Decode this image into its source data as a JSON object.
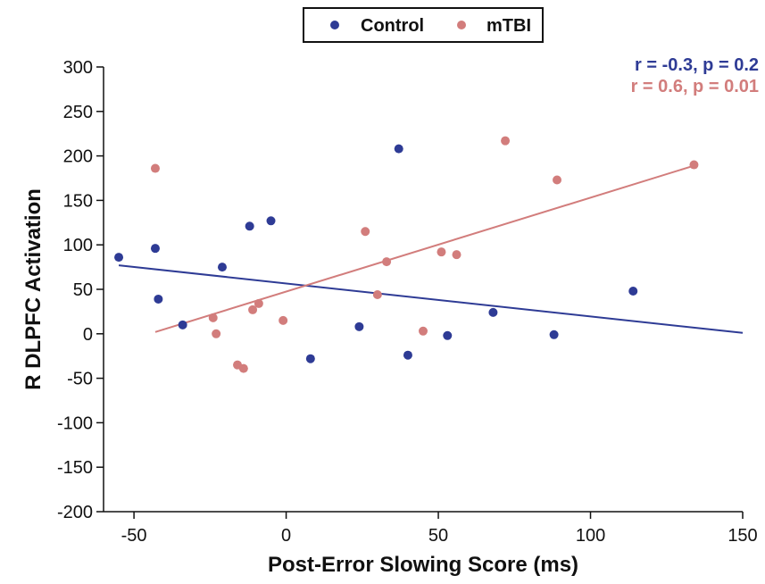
{
  "chart_data": {
    "type": "scatter",
    "title": "",
    "xlabel": "Post-Error Slowing Score (ms)",
    "ylabel": "R DLPFC Activation",
    "xlim": [
      -60,
      150
    ],
    "ylim": [
      -200,
      300
    ],
    "xticks": [
      -50,
      0,
      50,
      100,
      150
    ],
    "yticks": [
      300,
      250,
      200,
      150,
      100,
      50,
      0,
      -50,
      -100,
      -150,
      -200
    ],
    "grid": false,
    "legend_position": "top-center",
    "series": [
      {
        "name": "Control",
        "color": "#2e3b95",
        "points": [
          [
            -55,
            86
          ],
          [
            -43,
            96
          ],
          [
            -42,
            39
          ],
          [
            -34,
            10
          ],
          [
            -21,
            75
          ],
          [
            -12,
            121
          ],
          [
            -5,
            127
          ],
          [
            8,
            -28
          ],
          [
            24,
            8
          ],
          [
            37,
            208
          ],
          [
            40,
            -24
          ],
          [
            53,
            -2
          ],
          [
            68,
            24
          ],
          [
            88,
            -1
          ],
          [
            114,
            48
          ]
        ],
        "fit": {
          "x": [
            -55,
            150
          ],
          "y": [
            77,
            1
          ]
        },
        "stat": "r = -0.3, p = 0.2"
      },
      {
        "name": "mTBI",
        "color": "#d27d7c",
        "points": [
          [
            -43,
            186
          ],
          [
            -24,
            18
          ],
          [
            -23,
            0
          ],
          [
            -16,
            -35
          ],
          [
            -14,
            -39
          ],
          [
            -11,
            27
          ],
          [
            -9,
            34
          ],
          [
            -1,
            15
          ],
          [
            26,
            115
          ],
          [
            30,
            44
          ],
          [
            33,
            81
          ],
          [
            45,
            3
          ],
          [
            51,
            92
          ],
          [
            56,
            89
          ],
          [
            72,
            217
          ],
          [
            89,
            173
          ],
          [
            134,
            190
          ]
        ],
        "fit": {
          "x": [
            -43,
            134
          ],
          "y": [
            2,
            189
          ]
        },
        "stat": "r = 0.6, p = 0.01"
      }
    ]
  }
}
